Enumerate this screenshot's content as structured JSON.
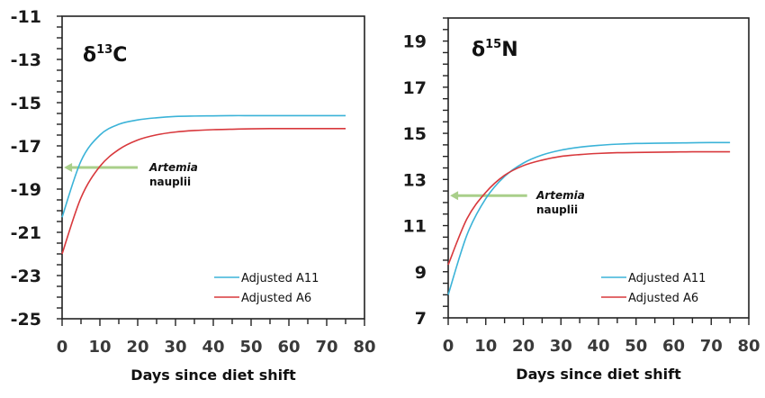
{
  "chart_data": [
    {
      "type": "line",
      "title": "δ13C",
      "title_main": "δ",
      "title_sup": "13",
      "title_tail": "C",
      "xlabel": "Days since diet shift",
      "ylabel": "",
      "xlim": [
        0,
        80
      ],
      "ylim": [
        -25,
        -11
      ],
      "x_ticks": [
        0,
        10,
        20,
        30,
        40,
        50,
        60,
        70,
        80
      ],
      "x_tick_labels": [
        "0",
        "10",
        "20",
        "30",
        "40",
        "50",
        "60",
        "70",
        "80"
      ],
      "y_ticks": [
        -25,
        -23,
        -21,
        -19,
        -17,
        -15,
        -13,
        -11
      ],
      "y_tick_labels": [
        "-25",
        "-23",
        "-21",
        "-19",
        "-17",
        "-15",
        "-13",
        "-11"
      ],
      "grid": false,
      "legend_position": "bottom-right",
      "x": [
        0,
        5,
        10,
        15,
        20,
        25,
        30,
        35,
        40,
        45,
        50,
        55,
        60,
        65,
        70,
        75
      ],
      "series": [
        {
          "name": "Adjusted A11",
          "color": "#3bb3d8",
          "values": [
            -20.3,
            -17.7,
            -16.5,
            -16.0,
            -15.8,
            -15.7,
            -15.64,
            -15.62,
            -15.61,
            -15.6,
            -15.6,
            -15.6,
            -15.6,
            -15.6,
            -15.6,
            -15.6
          ]
        },
        {
          "name": "Adjusted A6",
          "color": "#d8383c",
          "values": [
            -22.0,
            -19.4,
            -17.95,
            -17.17,
            -16.73,
            -16.49,
            -16.36,
            -16.29,
            -16.25,
            -16.23,
            -16.21,
            -16.2,
            -16.2,
            -16.2,
            -16.2,
            -16.2
          ]
        }
      ],
      "annotation": {
        "text_italic": "Artemia",
        "text": "nauplii",
        "arrow_y": -18,
        "arrow_from_x": 20,
        "arrow_to_x": 0.5,
        "arrow_color": "#a9cf8a"
      }
    },
    {
      "type": "line",
      "title": "δ15N",
      "title_main": "δ",
      "title_sup": "15",
      "title_tail": "N",
      "xlabel": "Days since diet shift",
      "ylabel": "",
      "xlim": [
        0,
        80
      ],
      "ylim": [
        7,
        20
      ],
      "x_ticks": [
        0,
        10,
        20,
        30,
        40,
        50,
        60,
        70,
        80
      ],
      "x_tick_labels": [
        "0",
        "10",
        "20",
        "30",
        "40",
        "50",
        "60",
        "70",
        "80"
      ],
      "y_ticks": [
        7,
        9,
        11,
        13,
        15,
        17,
        19
      ],
      "y_tick_labels": [
        "7",
        "9",
        "11",
        "13",
        "15",
        "17",
        "19"
      ],
      "grid": false,
      "legend_position": "bottom-right",
      "x": [
        0,
        5,
        10,
        15,
        20,
        25,
        30,
        35,
        40,
        45,
        50,
        55,
        60,
        65,
        70,
        75
      ],
      "series": [
        {
          "name": "Adjusted A11",
          "color": "#3bb3d8",
          "values": [
            8.0,
            10.6,
            12.17,
            13.13,
            13.71,
            14.06,
            14.27,
            14.4,
            14.48,
            14.53,
            14.56,
            14.57,
            14.58,
            14.59,
            14.6,
            14.6
          ]
        },
        {
          "name": "Adjusted A6",
          "color": "#d8383c",
          "values": [
            9.3,
            11.3,
            12.44,
            13.18,
            13.6,
            13.84,
            14.0,
            14.08,
            14.13,
            14.16,
            14.17,
            14.18,
            14.19,
            14.2,
            14.2,
            14.2
          ]
        }
      ],
      "annotation": {
        "text_italic": "Artemia",
        "text": "nauplii",
        "arrow_y": 12.3,
        "arrow_from_x": 21,
        "arrow_to_x": 0.5,
        "arrow_color": "#a9cf8a"
      }
    }
  ]
}
